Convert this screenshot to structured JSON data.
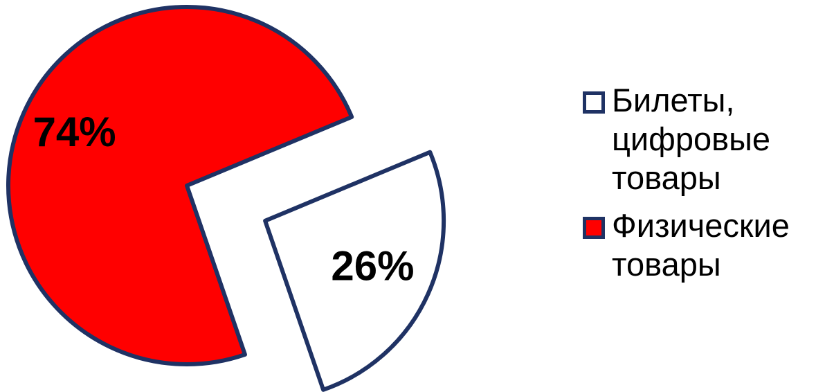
{
  "chart_data": {
    "type": "pie",
    "title": "",
    "slices": [
      {
        "label": "Билеты, цифровые товары",
        "value": 26,
        "data_label": "26%",
        "color": "#ffffff",
        "exploded": true
      },
      {
        "label": "Физические товары",
        "value": 74,
        "data_label": "74%",
        "color": "#ff0000",
        "exploded": false
      }
    ],
    "border_color": "#1f3264",
    "legend_position": "right"
  }
}
